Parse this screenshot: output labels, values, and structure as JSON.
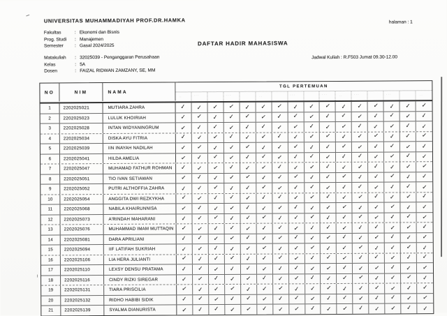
{
  "colon": ":",
  "page": {
    "university": "UNIVERSITAS MUHAMMADIYAH PROF.DR.HAMKA",
    "halaman": "halaman : 1",
    "title": "DAFTAR HADIR MAHASISWA",
    "info_left": [
      {
        "label": "Fakultas",
        "value": "Ekonomi dan Bisnis"
      },
      {
        "label": "Prog. Studi",
        "value": "Manajemen"
      },
      {
        "label": "Semester",
        "value": "Gasal 2024/2025"
      }
    ],
    "info_course": [
      {
        "label": "Matakuliah",
        "value": "32025039 - Penganggaran Perusahaan"
      },
      {
        "label": "Kelas",
        "value": "5A"
      },
      {
        "label": "Dosen",
        "value": "FAIZAL RIDWAN ZAMZANY, SE, MM"
      }
    ],
    "jadwal": "Jadwal Kuliah :  R.F503 Jumat 09.30-12.00"
  },
  "table": {
    "headers": {
      "no": "NO",
      "nim": "NIM",
      "nama": "NAMA",
      "tgl": "TGL PERTEMUAN"
    },
    "meeting_columns": 16,
    "check_icon": "✓",
    "students": [
      {
        "no": "1",
        "nim": "2202025021",
        "nama": "MUTIARA ZAHRA",
        "attendance": "1111111111111111"
      },
      {
        "no": "2",
        "nim": "2202025023",
        "nama": "LULUK KHOIRIAH",
        "attendance": "1111111111111111"
      },
      {
        "no": "3",
        "nim": "2202025028",
        "nama": "INTAN WIDYANINGRUM",
        "attendance": "1111111111111111"
      },
      {
        "no": "4",
        "nim": "2202025034",
        "nama": "DISKA AYU FITRIA",
        "attendance": "1111111111111111"
      },
      {
        "no": "5",
        "nim": "2202025039",
        "nama": "IIN INAYAH NADILAH",
        "attendance": "1111111111111111"
      },
      {
        "no": "6",
        "nim": "2202025041",
        "nama": "HILDA AMELIA",
        "attendance": "1111111111111111"
      },
      {
        "no": "7",
        "nim": "2202025047",
        "nama": "MUHAMAD FATHUR ROHMAN",
        "attendance": "1111111111111111"
      },
      {
        "no": "8",
        "nim": "2202025051",
        "nama": "TIO IVAN SETIAWAN",
        "attendance": "1111111111111111"
      },
      {
        "no": "9",
        "nim": "2202025052",
        "nama": "PUTRI ALTHOFFIA ZAHRA",
        "attendance": "1111111111111111"
      },
      {
        "no": "10",
        "nim": "2202025054",
        "nama": "ANGGITA DWI REZKYKHA",
        "attendance": "1111111111111111"
      },
      {
        "no": "11",
        "nim": "2202025068",
        "nama": "NABILA KHAIRUNNISA",
        "attendance": "1111111111111111"
      },
      {
        "no": "12",
        "nim": "2202025073",
        "nama": "A'RINDAH MAHARANI",
        "attendance": "1111111111111111"
      },
      {
        "no": "13",
        "nim": "2202025076",
        "nama": "MUHAMMAD IMAM MUTTAQIN",
        "attendance": "1111111111111111"
      },
      {
        "no": "14",
        "nim": "2202025081",
        "nama": "DARA APRILIANI",
        "attendance": "1111111111111111"
      },
      {
        "no": "15",
        "nim": "2202025094",
        "nama": "IIF LATIFAH SUKRIAH",
        "attendance": "1111111111111111"
      },
      {
        "no": "16",
        "nim": "2202025106",
        "nama": "LIA HERA JULIANTI",
        "attendance": "1111111111111111"
      },
      {
        "no": "17",
        "nim": "2202025110",
        "nama": "LEXSY DENSU PRATAMA",
        "attendance": "1111111111111111"
      },
      {
        "no": "18",
        "nim": "2202025116",
        "nama": "CINDY RIZKI SIREGAR",
        "attendance": "1111111111111111"
      },
      {
        "no": "19",
        "nim": "2202025131",
        "nama": "TIARA PRISCILIA",
        "attendance": "1111111111111111"
      },
      {
        "no": "20",
        "nim": "2202025132",
        "nama": "RIDHO HABIBI SIDIK",
        "attendance": "1111111111111111"
      },
      {
        "no": "21",
        "nim": "2202025139",
        "nama": "SYALMA DIANURISTA",
        "attendance": "1111111111111111"
      }
    ]
  }
}
